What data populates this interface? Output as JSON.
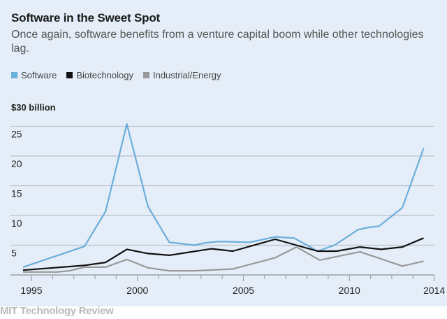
{
  "chart_data": {
    "type": "line",
    "title": "Software in the Sweet Spot",
    "subtitle": "Once again, software benefits from a venture capital boom while other technologies lag.",
    "ylabel": "$30 billion",
    "ylim": [
      0,
      30
    ],
    "xlim": [
      1994.5,
      2014
    ],
    "yticks": [
      "5",
      "10",
      "15",
      "20",
      "25"
    ],
    "ytick_values": [
      5,
      10,
      15,
      20,
      25
    ],
    "xticks": [
      "1995",
      "2000",
      "2005",
      "2010",
      "2014"
    ],
    "xtick_values": [
      1995,
      2000,
      2005,
      2010,
      2014
    ],
    "grid": true,
    "legend": "top-left",
    "series": [
      {
        "name": "Software",
        "color": "#6aaedb",
        "x": [
          1994.6,
          1997.5,
          1998.5,
          1999.5,
          2000.5,
          2001.5,
          2002.7,
          2003.2,
          2003.8,
          2004.1,
          2005.3,
          2006.5,
          2007.4,
          2008.5,
          2009.3,
          2010.4,
          2010.9,
          2011.4,
          2012.5,
          2013.5
        ],
        "y": [
          1.3,
          4.8,
          10.7,
          25.4,
          11.5,
          5.5,
          5.0,
          5.4,
          5.6,
          5.6,
          5.5,
          6.4,
          6.2,
          4.0,
          5.0,
          7.6,
          8.0,
          8.2,
          11.3,
          21.3
        ]
      },
      {
        "name": "Biotechnology",
        "color": "#111111",
        "x": [
          1994.6,
          1997.5,
          1998.5,
          1999.5,
          2000.5,
          2001.5,
          2003.5,
          2004.5,
          2006.5,
          2008.5,
          2009.4,
          2010.5,
          2011.5,
          2012.5,
          2013.5
        ],
        "y": [
          0.8,
          1.6,
          2.1,
          4.3,
          3.6,
          3.3,
          4.4,
          4.0,
          6.0,
          4.0,
          4.0,
          4.7,
          4.3,
          4.7,
          6.2
        ]
      },
      {
        "name": "Industrial/Energy",
        "color": "#999999",
        "x": [
          1994.6,
          1996.2,
          1996.8,
          1997.5,
          1998.5,
          1999.5,
          2000.5,
          2001.5,
          2002.7,
          2004.5,
          2006.5,
          2007.5,
          2008.6,
          2010.5,
          2012.5,
          2013.5
        ],
        "y": [
          0.5,
          0.5,
          0.7,
          1.3,
          1.3,
          2.6,
          1.2,
          0.7,
          0.7,
          1.0,
          2.9,
          4.7,
          2.5,
          3.9,
          1.5,
          2.3
        ]
      }
    ]
  },
  "credit": "MIT Technology Review"
}
